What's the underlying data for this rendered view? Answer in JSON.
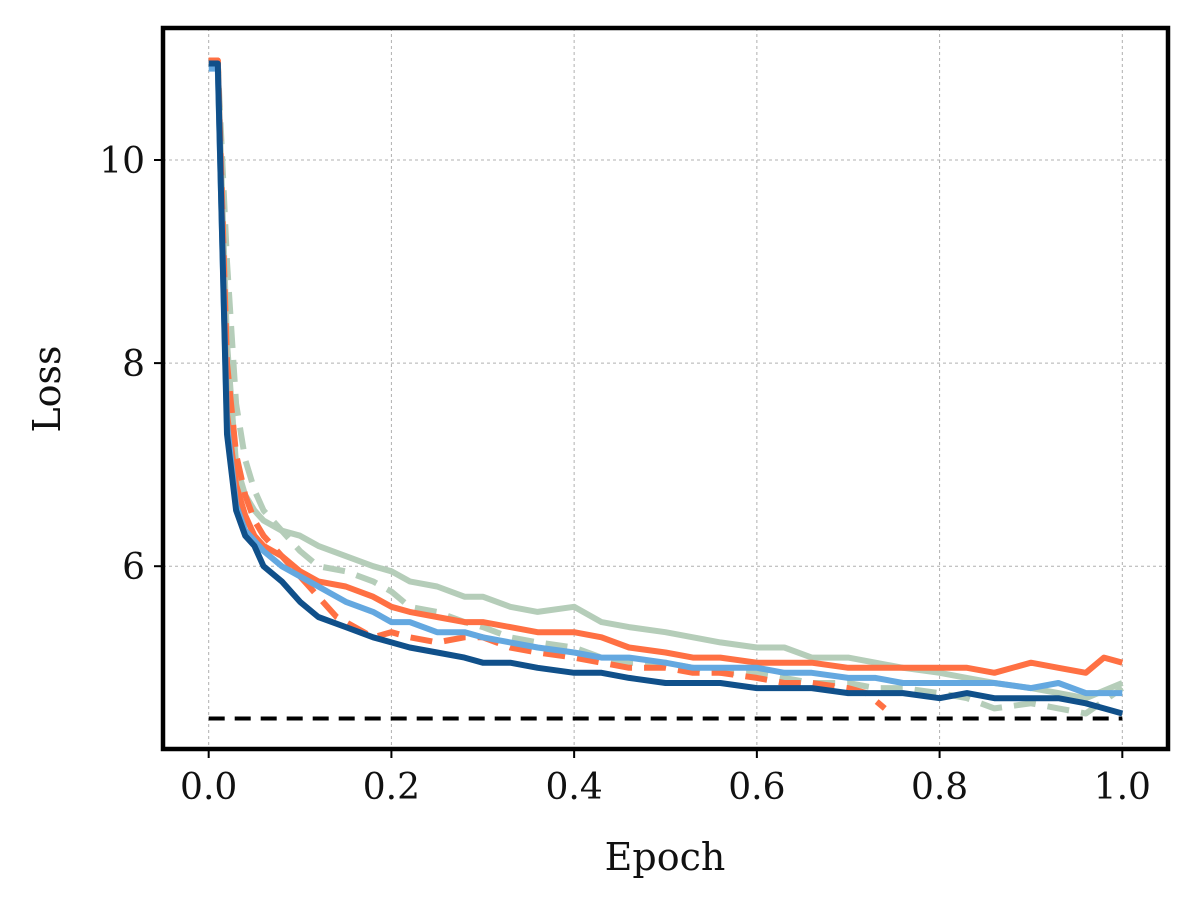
{
  "chart_data": {
    "type": "line",
    "xlabel": "Epoch",
    "ylabel": "Loss",
    "xlim": [
      -0.05,
      1.05
    ],
    "ylim": [
      4.2,
      11.3
    ],
    "xticks": [
      0.0,
      0.2,
      0.4,
      0.6,
      0.8,
      1.0
    ],
    "xtick_labels": [
      "0.0",
      "0.2",
      "0.4",
      "0.6",
      "0.8",
      "1.0"
    ],
    "yticks": [
      6,
      8,
      10
    ],
    "ytick_labels": [
      "6",
      "8",
      "10"
    ],
    "grid": true,
    "colors": {
      "sage": "#b5cdb9",
      "orange": "#ff7043",
      "light_blue": "#64a8e0",
      "dark_blue": "#10508a",
      "baseline": "#000000"
    },
    "series": [
      {
        "color": "sage",
        "style": "solid",
        "x": [
          0.0,
          0.01,
          0.02,
          0.03,
          0.04,
          0.05,
          0.06,
          0.08,
          0.1,
          0.12,
          0.15,
          0.18,
          0.2,
          0.22,
          0.25,
          0.28,
          0.3,
          0.33,
          0.36,
          0.4,
          0.43,
          0.46,
          0.5,
          0.53,
          0.56,
          0.6,
          0.63,
          0.66,
          0.7,
          0.73,
          0.76,
          0.8,
          0.83,
          0.86,
          0.9,
          0.93,
          0.96,
          1.0
        ],
        "y": [
          10.95,
          10.95,
          8.2,
          7.0,
          6.7,
          6.55,
          6.45,
          6.35,
          6.3,
          6.2,
          6.1,
          6.0,
          5.95,
          5.85,
          5.8,
          5.7,
          5.7,
          5.6,
          5.55,
          5.6,
          5.45,
          5.4,
          5.35,
          5.3,
          5.25,
          5.2,
          5.2,
          5.1,
          5.1,
          5.05,
          5.0,
          4.95,
          4.9,
          4.85,
          4.8,
          4.75,
          4.7,
          4.85
        ]
      },
      {
        "color": "sage",
        "style": "dashed",
        "x": [
          0.0,
          0.01,
          0.02,
          0.03,
          0.04,
          0.05,
          0.06,
          0.08,
          0.1,
          0.12,
          0.15,
          0.18,
          0.2,
          0.22,
          0.25,
          0.28,
          0.3,
          0.33,
          0.36,
          0.4,
          0.43,
          0.46,
          0.5,
          0.53,
          0.56,
          0.6,
          0.63,
          0.66,
          0.7,
          0.73,
          0.76,
          0.8,
          0.83,
          0.86,
          0.9,
          0.93,
          0.96,
          1.0
        ],
        "y": [
          10.95,
          10.95,
          9.0,
          7.6,
          7.05,
          6.75,
          6.55,
          6.35,
          6.15,
          6.0,
          5.95,
          5.85,
          5.75,
          5.6,
          5.55,
          5.45,
          5.4,
          5.3,
          5.25,
          5.2,
          5.1,
          5.05,
          5.05,
          5.0,
          4.95,
          4.95,
          4.9,
          4.85,
          4.85,
          4.8,
          4.8,
          4.75,
          4.7,
          4.6,
          4.65,
          4.6,
          4.55,
          4.8
        ]
      },
      {
        "color": "orange",
        "style": "solid",
        "x": [
          0.0,
          0.01,
          0.02,
          0.03,
          0.04,
          0.05,
          0.06,
          0.08,
          0.1,
          0.12,
          0.15,
          0.18,
          0.2,
          0.22,
          0.25,
          0.28,
          0.3,
          0.33,
          0.36,
          0.4,
          0.43,
          0.46,
          0.5,
          0.53,
          0.56,
          0.6,
          0.63,
          0.66,
          0.7,
          0.73,
          0.76,
          0.8,
          0.83,
          0.86,
          0.9,
          0.93,
          0.96,
          0.98,
          1.0
        ],
        "y": [
          10.98,
          10.98,
          7.5,
          6.8,
          6.5,
          6.3,
          6.2,
          6.1,
          5.95,
          5.85,
          5.8,
          5.7,
          5.6,
          5.55,
          5.5,
          5.45,
          5.45,
          5.4,
          5.35,
          5.35,
          5.3,
          5.2,
          5.15,
          5.1,
          5.1,
          5.05,
          5.05,
          5.05,
          5.0,
          5.0,
          5.0,
          5.0,
          5.0,
          4.95,
          5.05,
          5.0,
          4.95,
          5.1,
          5.05
        ]
      },
      {
        "color": "orange",
        "style": "dashed",
        "x": [
          0.0,
          0.01,
          0.02,
          0.03,
          0.04,
          0.05,
          0.06,
          0.08,
          0.1,
          0.12,
          0.14,
          0.16,
          0.18,
          0.2,
          0.22,
          0.25,
          0.28,
          0.3,
          0.33,
          0.36,
          0.4,
          0.43,
          0.46,
          0.5,
          0.53,
          0.56,
          0.6,
          0.63,
          0.66,
          0.7,
          0.72,
          0.74
        ],
        "y": [
          10.98,
          10.98,
          8.0,
          7.1,
          6.7,
          6.45,
          6.3,
          6.1,
          5.9,
          5.7,
          5.5,
          5.4,
          5.3,
          5.35,
          5.3,
          5.25,
          5.3,
          5.3,
          5.2,
          5.15,
          5.1,
          5.05,
          5.0,
          5.0,
          4.95,
          4.95,
          4.9,
          4.85,
          4.85,
          4.8,
          4.75,
          4.6
        ]
      },
      {
        "color": "light_blue",
        "style": "solid",
        "x": [
          0.0,
          0.01,
          0.02,
          0.03,
          0.04,
          0.05,
          0.06,
          0.08,
          0.1,
          0.12,
          0.15,
          0.18,
          0.2,
          0.22,
          0.25,
          0.28,
          0.3,
          0.33,
          0.36,
          0.4,
          0.43,
          0.46,
          0.5,
          0.53,
          0.56,
          0.6,
          0.63,
          0.66,
          0.7,
          0.73,
          0.76,
          0.8,
          0.83,
          0.86,
          0.9,
          0.93,
          0.96,
          1.0
        ],
        "y": [
          10.9,
          10.9,
          7.4,
          6.6,
          6.35,
          6.25,
          6.15,
          6.0,
          5.9,
          5.8,
          5.65,
          5.55,
          5.45,
          5.45,
          5.35,
          5.35,
          5.3,
          5.25,
          5.2,
          5.15,
          5.1,
          5.1,
          5.05,
          5.0,
          5.0,
          5.0,
          4.95,
          4.95,
          4.9,
          4.9,
          4.85,
          4.85,
          4.85,
          4.85,
          4.8,
          4.85,
          4.75,
          4.75
        ]
      },
      {
        "color": "dark_blue",
        "style": "solid",
        "x": [
          0.0,
          0.01,
          0.02,
          0.03,
          0.04,
          0.05,
          0.06,
          0.08,
          0.1,
          0.12,
          0.15,
          0.18,
          0.2,
          0.22,
          0.25,
          0.28,
          0.3,
          0.33,
          0.36,
          0.4,
          0.43,
          0.46,
          0.5,
          0.53,
          0.56,
          0.6,
          0.63,
          0.66,
          0.7,
          0.73,
          0.76,
          0.8,
          0.83,
          0.86,
          0.9,
          0.93,
          0.96,
          0.98,
          1.0
        ],
        "y": [
          10.95,
          10.95,
          7.3,
          6.55,
          6.3,
          6.2,
          6.0,
          5.85,
          5.65,
          5.5,
          5.4,
          5.3,
          5.25,
          5.2,
          5.15,
          5.1,
          5.05,
          5.05,
          5.0,
          4.95,
          4.95,
          4.9,
          4.85,
          4.85,
          4.85,
          4.8,
          4.8,
          4.8,
          4.75,
          4.75,
          4.75,
          4.7,
          4.75,
          4.7,
          4.7,
          4.7,
          4.65,
          4.6,
          4.55
        ]
      },
      {
        "color": "baseline",
        "style": "dashed",
        "x": [
          0.0,
          1.0
        ],
        "y": [
          4.5,
          4.5
        ]
      }
    ]
  }
}
